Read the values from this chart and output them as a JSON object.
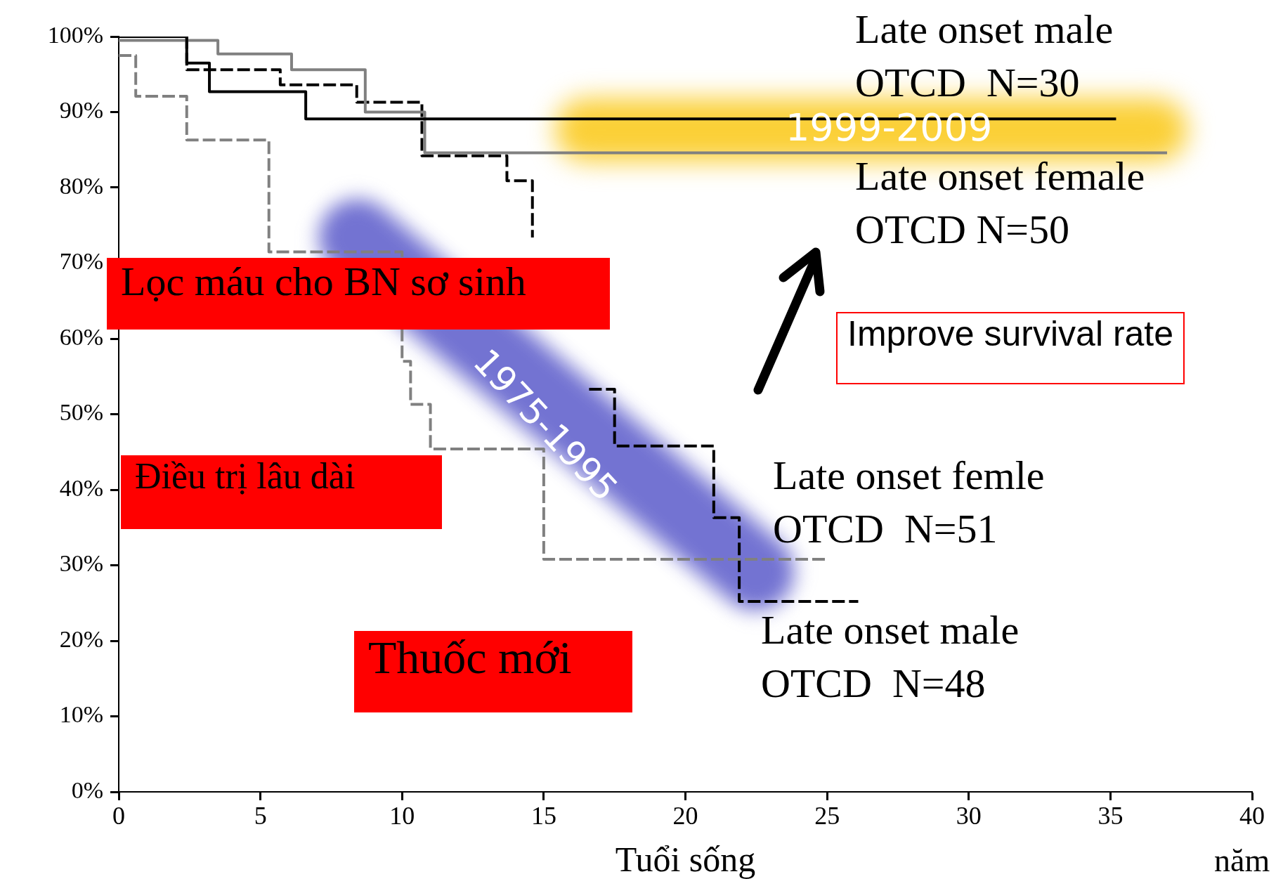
{
  "chart_data": {
    "type": "step",
    "xlabel": "Tuổi sống",
    "xlim": [
      0,
      40
    ],
    "xticks": [
      0,
      5,
      10,
      15,
      20,
      25,
      30,
      35,
      40
    ],
    "ylim": [
      0,
      100
    ],
    "yticks": [
      {
        "value": 0,
        "label": "0%"
      },
      {
        "value": 10,
        "label": "10%"
      },
      {
        "value": 20,
        "label": "20%"
      },
      {
        "value": 30,
        "label": "30%"
      },
      {
        "value": 40,
        "label": "40%"
      },
      {
        "value": 50,
        "label": "50%"
      },
      {
        "value": 60,
        "label": "60%"
      },
      {
        "value": 70,
        "label": "70%"
      },
      {
        "value": 80,
        "label": "80%"
      },
      {
        "value": 90,
        "label": "90%"
      },
      {
        "value": 100,
        "label": "100%"
      }
    ],
    "grid": false,
    "annotations": [
      "1999-2009",
      "1975-1995",
      "Lọc máu cho BN sơ sinh",
      "Điều trị lâu dài",
      "Thuốc mới",
      "Improve survival rate",
      "năm"
    ],
    "series": [
      {
        "name": "Late onset male\nOTCD  N=30",
        "color": "#000000",
        "line_style": "solid",
        "x": [
          0,
          2.4,
          3.2,
          6.6,
          35.2
        ],
        "values": [
          100,
          96.5,
          92.7,
          89.1,
          89.1
        ]
      },
      {
        "name": "Late onset female\nOTCD N=50",
        "color": "#808080",
        "line_style": "solid",
        "x": [
          0,
          3.5,
          6.1,
          8.7,
          10.8,
          37.0
        ],
        "values": [
          99.5,
          97.7,
          95.6,
          90,
          84.6,
          84.6
        ]
      },
      {
        "name": "Late onset femle\nOTCD  N=51",
        "color": "#808080",
        "line_style": "dashed",
        "x": [
          0,
          0.6,
          2.4,
          5.3,
          10.0,
          10.3,
          11.0,
          15.0,
          25.0
        ],
        "values": [
          97.5,
          92.1,
          86.3,
          71.5,
          57,
          51.3,
          45.4,
          30.8,
          30.8
        ]
      },
      {
        "name": "Late onset male\nOTCD  N=48",
        "color": "#000000",
        "line_style": "dashed",
        "x": [
          0,
          2.4,
          5.7,
          8.4,
          10.7,
          13.7,
          14.6,
          15.0,
          16.6,
          17.5,
          21.0,
          21.9,
          26.1
        ],
        "values": [
          100,
          95.6,
          93.6,
          91.3,
          84.2,
          80.9,
          73.4,
          null,
          53.3,
          45.8,
          36.3,
          25.2,
          25.2
        ]
      }
    ]
  }
}
